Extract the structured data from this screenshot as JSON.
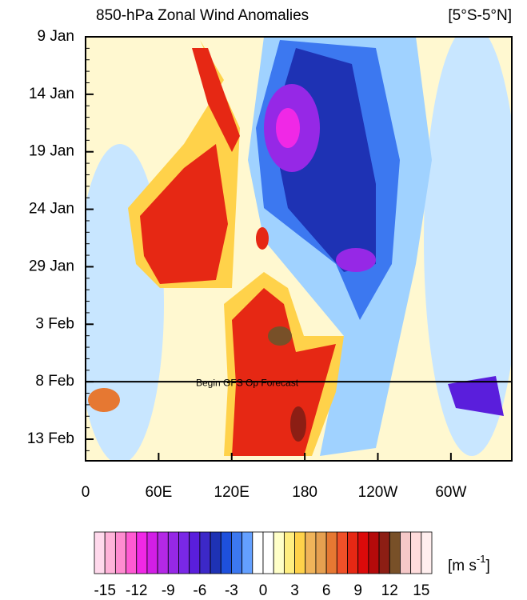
{
  "chart_data": {
    "type": "hovmoller",
    "title": "850-hPa Zonal Wind Anomalies",
    "region": "[5°S-5°N]",
    "xlim": [
      0,
      350
    ],
    "xticks": [
      0,
      {
        "value": 60,
        "label": "60E"
      },
      {
        "value": 120,
        "label": "120E"
      },
      180,
      {
        "value": 240,
        "label": "120W"
      },
      {
        "value": 300,
        "label": "60W"
      }
    ],
    "y_categories": [
      "9 Jan",
      "14 Jan",
      "19 Jan",
      "24 Jan",
      "29 Jan",
      "3 Feb",
      "8 Feb",
      "13 Feb"
    ],
    "annotation": "Begin GFS Op Forecast",
    "forecast_start": "8 Feb",
    "colorbar_range": [
      -16,
      16
    ],
    "colorbar_ticks": [
      -15,
      -12,
      -9,
      -6,
      -3,
      0,
      3,
      6,
      9,
      12,
      15
    ],
    "colors": [
      "#ffd9ec",
      "#ffb3d9",
      "#ff8cd0",
      "#ff5ad2",
      "#f028e6",
      "#d21ee6",
      "#b428e6",
      "#9628e6",
      "#7a28e6",
      "#5a1edc",
      "#3c28c8",
      "#1e32b4",
      "#1e50dc",
      "#3c78f0",
      "#64a0ff",
      "#ffffff",
      "#ffffff",
      "#ffffc8",
      "#ffee80",
      "#ffd24a",
      "#f0b45a",
      "#e6a050",
      "#e67832",
      "#f05028",
      "#e62814",
      "#dc0a0a",
      "#b40a0a",
      "#8c1e14",
      "#785028",
      "#f5c8c8",
      "#ffdcdc",
      "#ffeeee"
    ],
    "units": {
      "base": "[m s",
      "exponent": "-1",
      "close": "]"
    }
  }
}
